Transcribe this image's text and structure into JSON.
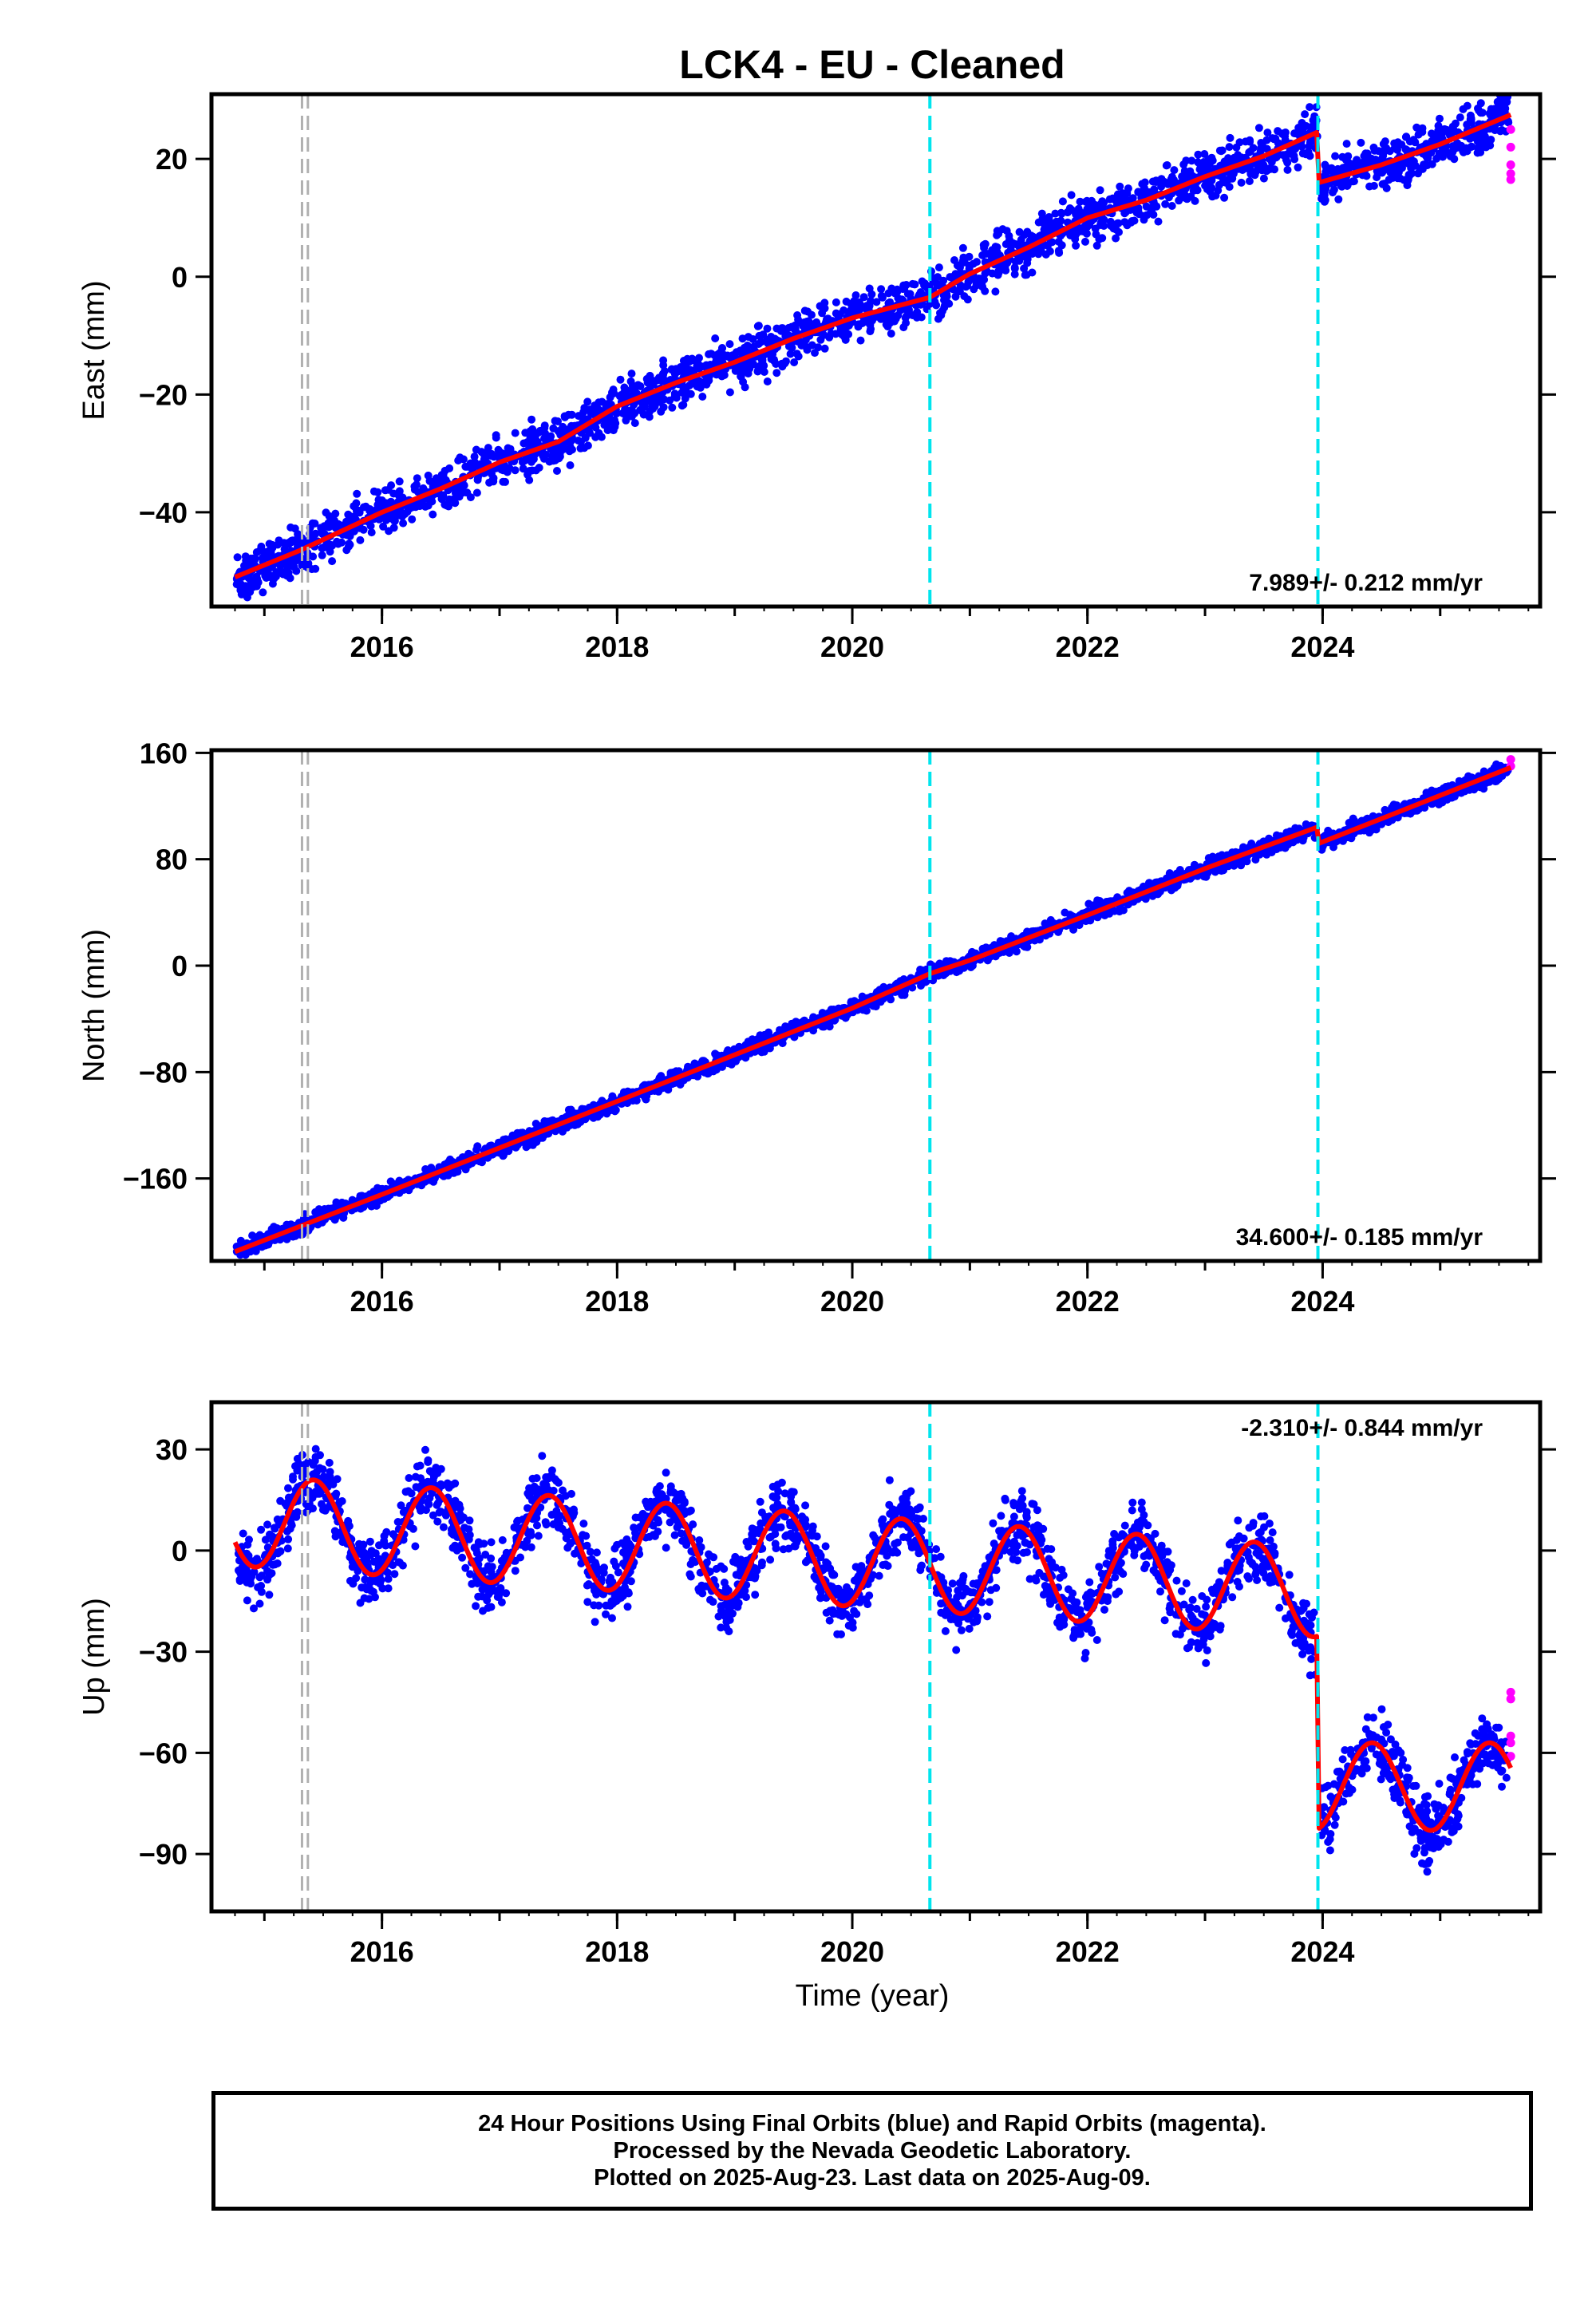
{
  "title": "LCK4  - EU - Cleaned",
  "xlabel": "Time (year)",
  "colors": {
    "final": "#0000ff",
    "rapid": "#ff00ff",
    "model": "#ff0000",
    "offset_equipment": "#00e5ee",
    "offset_other": "#b0b0b0"
  },
  "x_range": [
    2014.55,
    2025.85
  ],
  "x_ticks": [
    2016,
    2018,
    2020,
    2022,
    2024
  ],
  "offsets": {
    "equipment": [
      2020.66,
      2023.96
    ],
    "other": [
      2015.32,
      2015.37
    ]
  },
  "footer": {
    "line1": "24 Hour Positions Using Final Orbits (blue) and Rapid Orbits (magenta).",
    "line2": "Processed by the Nevada Geodetic Laboratory.",
    "line3": "Plotted on 2025-Aug-23. Last data on 2025-Aug-09."
  },
  "chart_data": [
    {
      "type": "scatter",
      "ylabel": "East (mm)",
      "rate_label": "7.989+/- 0.212 mm/yr",
      "ylim": [
        -56,
        31
      ],
      "y_ticks": [
        -40,
        -20,
        0,
        20
      ],
      "model": {
        "x": [
          2014.75,
          2015.3,
          2016.0,
          2016.5,
          2017.0,
          2017.5,
          2018.0,
          2018.5,
          2019.0,
          2019.5,
          2020.0,
          2020.66,
          2021.0,
          2021.5,
          2022.0,
          2022.5,
          2023.0,
          2023.5,
          2023.95,
          2023.97,
          2024.5,
          2025.0,
          2025.6
        ],
        "y": [
          -51,
          -46.5,
          -40,
          -36,
          -31.5,
          -28,
          -22,
          -18,
          -14.5,
          -10.5,
          -7,
          -3.5,
          0.5,
          5,
          10,
          13,
          17,
          20.5,
          24.5,
          16,
          19,
          22.5,
          27.5
        ]
      },
      "rapid": {
        "x": [
          2025.6,
          2025.6,
          2025.6,
          2025.6,
          2025.6
        ],
        "y": [
          25,
          22,
          19,
          17.5,
          16.5
        ]
      }
    },
    {
      "type": "scatter",
      "ylabel": "North (mm)",
      "rate_label": "34.600+/- 0.185 mm/yr",
      "ylim": [
        -222,
        162
      ],
      "y_ticks": [
        -160,
        -80,
        0,
        80,
        160
      ],
      "model": {
        "x": [
          2014.75,
          2016.0,
          2017.0,
          2018.0,
          2019.0,
          2020.0,
          2020.66,
          2021.0,
          2022.0,
          2023.0,
          2023.95,
          2023.97,
          2025.0,
          2025.6
        ],
        "y": [
          -215,
          -172,
          -137,
          -102,
          -67,
          -32,
          -6,
          4,
          38,
          73,
          104,
          92,
          128,
          149
        ]
      },
      "rapid": {
        "x": [
          2025.6,
          2025.6
        ],
        "y": [
          150,
          155
        ]
      }
    },
    {
      "type": "scatter",
      "ylabel": "Up (mm)",
      "rate_label": "-2.310+/- 0.844 mm/yr",
      "ylim": [
        -107,
        44
      ],
      "y_ticks": [
        -90,
        -60,
        -30,
        0,
        30
      ],
      "seasonal": {
        "segments": [
          {
            "x_start": 2014.75,
            "x_end": 2023.95,
            "base_intercept": 9,
            "base_slope": -2.3,
            "base_x0": 2014.75,
            "amplitude": 13.5,
            "peak_fraction": 0.42
          },
          {
            "x_start": 2023.97,
            "x_end": 2025.6,
            "base_intercept": -70,
            "base_slope": 0,
            "base_x0": 2023.97,
            "amplitude": 13,
            "peak_fraction": 0.42
          }
        ]
      },
      "rapid": {
        "x": [
          2025.6,
          2025.6,
          2025.6,
          2025.6,
          2025.6
        ],
        "y": [
          -42,
          -44,
          -55,
          -57,
          -61
        ]
      }
    }
  ]
}
